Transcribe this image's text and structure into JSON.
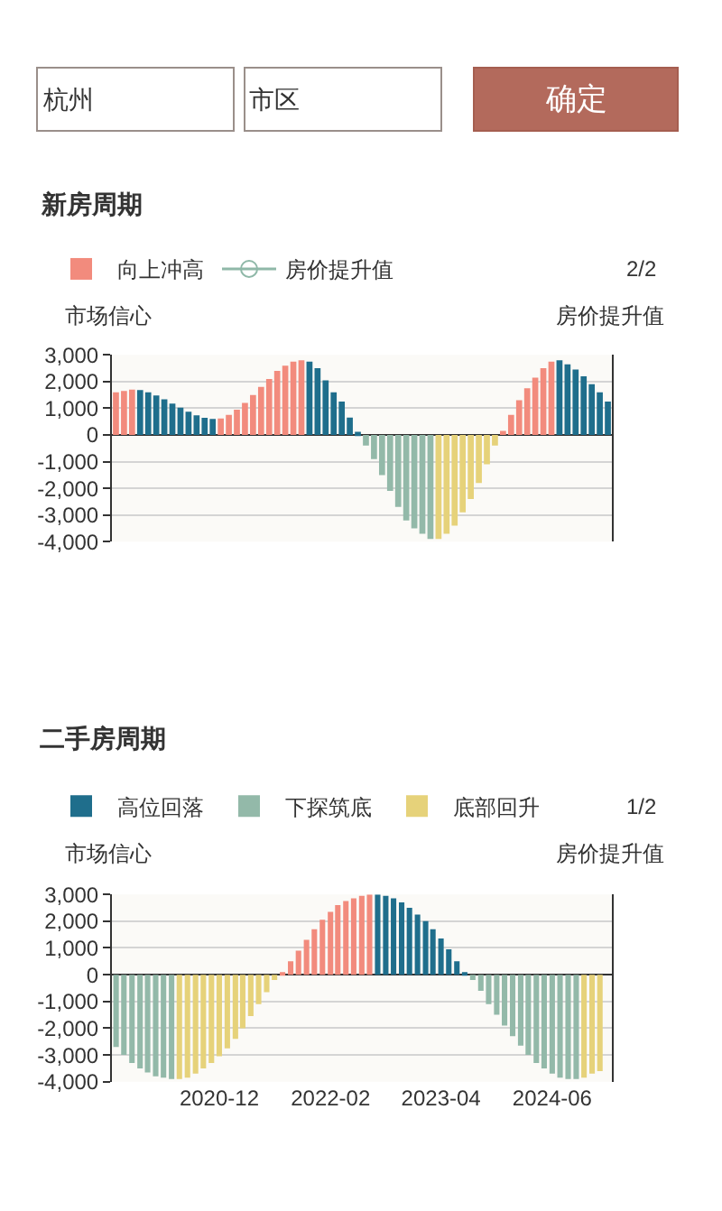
{
  "chart_data": [
    {
      "type": "bar",
      "title": "新房周期",
      "ylabel": "市场信心",
      "y2label": "房价提升值",
      "annotations": [
        "杭州",
        "市区",
        "确定",
        "2/2"
      ],
      "categories": [
        null,
        null,
        null,
        null,
        null,
        null,
        null,
        null,
        null,
        null,
        null,
        null,
        null,
        null,
        null,
        null,
        null,
        null,
        null,
        null,
        null,
        null,
        null,
        null,
        null,
        null,
        null,
        null,
        null,
        null,
        null,
        null,
        null,
        null,
        null,
        null,
        null,
        null,
        null,
        null,
        null,
        null,
        null,
        null,
        null,
        null,
        null,
        null,
        null,
        null,
        null,
        null,
        null,
        null,
        null,
        null,
        null,
        null,
        null,
        null,
        null,
        null
      ],
      "series": [
        {
          "name": "向上冲高",
          "color": "#f28b7d",
          "values": [
            1600,
            1650,
            1700,
            null,
            null,
            null,
            null,
            null,
            null,
            null,
            null,
            null,
            null,
            620,
            750,
            950,
            1200,
            1500,
            1800,
            2100,
            2400,
            2600,
            2750,
            2800,
            null,
            null,
            null,
            null,
            null,
            null,
            null,
            null,
            null,
            null,
            null,
            null,
            null,
            null,
            null,
            null,
            null,
            null,
            null,
            null,
            null,
            null,
            null,
            null,
            150,
            750,
            1300,
            1750,
            2150,
            2500,
            2750,
            null,
            null,
            null,
            null,
            null,
            null,
            null
          ]
        },
        {
          "color": "#1f6e8c",
          "values": [
            null,
            null,
            null,
            1680,
            1600,
            1480,
            1340,
            1180,
            1020,
            870,
            740,
            640,
            600,
            null,
            null,
            null,
            null,
            null,
            null,
            null,
            null,
            null,
            null,
            null,
            2750,
            2500,
            2050,
            1600,
            1250,
            650,
            120,
            null,
            null,
            null,
            null,
            null,
            null,
            null,
            null,
            null,
            null,
            null,
            null,
            null,
            null,
            null,
            null,
            null,
            null,
            null,
            null,
            null,
            null,
            null,
            null,
            2800,
            2650,
            2450,
            2200,
            1900,
            1600,
            1250
          ]
        },
        {
          "color": "#93b9a9",
          "values": [
            null,
            null,
            null,
            null,
            null,
            null,
            null,
            null,
            null,
            null,
            null,
            null,
            null,
            null,
            null,
            null,
            null,
            null,
            null,
            null,
            null,
            null,
            null,
            null,
            null,
            null,
            null,
            null,
            null,
            null,
            null,
            -400,
            -900,
            -1500,
            -2100,
            -2700,
            -3200,
            -3500,
            -3700,
            -3900,
            null,
            null,
            null,
            null,
            null,
            null,
            null,
            null,
            null,
            null,
            null,
            null,
            null,
            null,
            null,
            null,
            null,
            null,
            null,
            null,
            null,
            null
          ]
        },
        {
          "color": "#e6d27a",
          "values": [
            null,
            null,
            null,
            null,
            null,
            null,
            null,
            null,
            null,
            null,
            null,
            null,
            null,
            null,
            null,
            null,
            null,
            null,
            null,
            null,
            null,
            null,
            null,
            null,
            null,
            null,
            null,
            null,
            null,
            null,
            null,
            null,
            null,
            null,
            null,
            null,
            null,
            null,
            null,
            null,
            -3900,
            -3700,
            -3400,
            -2900,
            -2400,
            -1800,
            -1100,
            -400,
            null,
            null,
            null,
            null,
            null,
            null,
            null,
            null,
            null,
            null,
            null,
            null,
            null,
            null
          ]
        },
        {
          "name": "房价提升值",
          "type": "line",
          "marker": "circle",
          "color": "#8fb8a8",
          "values": [
            null,
            null,
            null,
            null,
            null,
            null,
            null,
            null,
            null,
            null,
            null,
            null,
            null,
            null,
            null,
            null,
            null,
            null,
            null,
            null,
            null,
            null,
            null,
            null,
            null,
            null,
            null,
            null,
            null,
            null,
            null,
            null,
            null,
            null,
            null,
            null,
            null,
            null,
            null,
            null,
            null,
            null,
            null,
            null,
            null,
            null,
            null,
            null,
            null,
            null,
            null,
            null,
            null,
            null,
            null,
            null,
            null,
            null,
            null,
            null,
            null,
            null
          ]
        }
      ],
      "ylim": [
        -4000,
        3000
      ],
      "yticks": [
        {
          "value": 3000,
          "label": "3,000"
        },
        {
          "value": 2000,
          "label": "2,000"
        },
        {
          "value": 1000,
          "label": "1,000"
        },
        0,
        {
          "value": -1000,
          "label": "-1,000"
        },
        {
          "value": -2000,
          "label": "-2,000"
        },
        {
          "value": -3000,
          "label": "-3,000"
        },
        {
          "value": -4000,
          "label": "-4,000"
        }
      ],
      "grid": "y",
      "legend": "top",
      "tick_labels": "y"
    },
    {
      "type": "bar",
      "title": "二手房周期",
      "ylabel": "市场信心",
      "y2label": "房价提升值",
      "annotations": [
        "1/2"
      ],
      "x": [
        "2019-11",
        "2019-12",
        "2020-01",
        "2020-02",
        "2020-03",
        "2020-04",
        "2020-05",
        "2020-06",
        "2020-07",
        "2020-08",
        "2020-09",
        "2020-10",
        "2020-11",
        "2020-12",
        "2021-01",
        "2021-02",
        "2021-03",
        "2021-04",
        "2021-05",
        "2021-06",
        "2021-07",
        "2021-08",
        "2021-09",
        "2021-10",
        "2021-11",
        "2021-12",
        "2022-01",
        "2022-02",
        "2022-03",
        "2022-04",
        "2022-05",
        "2022-06",
        "2022-07",
        "2022-08",
        "2022-09",
        "2022-10",
        "2022-11",
        "2022-12",
        "2023-01",
        "2023-02",
        "2023-03",
        "2023-04",
        "2023-05",
        "2023-06",
        "2023-07",
        "2023-08",
        "2023-09",
        "2023-10",
        "2023-11",
        "2023-12",
        "2024-01",
        "2024-02",
        "2024-03",
        "2024-04",
        "2024-05",
        "2024-06",
        "2024-07",
        "2024-08",
        "2024-09",
        "2024-10",
        "2024-11",
        "2024-12"
      ],
      "series": [
        {
          "name": "高位回落",
          "color": "#1f6e8c",
          "values": [
            null,
            null,
            null,
            null,
            null,
            null,
            null,
            null,
            null,
            null,
            null,
            null,
            null,
            null,
            null,
            null,
            null,
            null,
            null,
            null,
            null,
            null,
            null,
            null,
            null,
            null,
            null,
            null,
            null,
            null,
            null,
            null,
            null,
            3000,
            2950,
            2850,
            2700,
            2500,
            2250,
            2000,
            1700,
            1350,
            950,
            500,
            100,
            null,
            null,
            null,
            null,
            null,
            null,
            null,
            null,
            null,
            null,
            null,
            null,
            null,
            null,
            null,
            null,
            null
          ]
        },
        {
          "name": "下探筑底",
          "color": "#93b9a9",
          "values": [
            -2700,
            -3000,
            -3300,
            -3500,
            -3650,
            -3800,
            -3850,
            -3900,
            null,
            null,
            null,
            null,
            null,
            null,
            null,
            null,
            null,
            null,
            null,
            null,
            null,
            null,
            null,
            null,
            null,
            null,
            null,
            null,
            null,
            null,
            null,
            null,
            null,
            null,
            null,
            null,
            null,
            null,
            null,
            null,
            null,
            null,
            null,
            null,
            null,
            -200,
            -600,
            -1100,
            -1500,
            -1900,
            -2300,
            -2650,
            -3000,
            -3300,
            -3500,
            -3700,
            -3850,
            -3900,
            -3900,
            null,
            null,
            null
          ]
        },
        {
          "name": "底部回升",
          "color": "#e6d27a",
          "values": [
            null,
            null,
            null,
            null,
            null,
            null,
            null,
            null,
            -3900,
            -3850,
            -3700,
            -3500,
            -3300,
            -3050,
            -2750,
            -2400,
            -2000,
            -1550,
            -1100,
            -650,
            -200,
            null,
            null,
            null,
            null,
            null,
            null,
            null,
            null,
            null,
            null,
            null,
            null,
            null,
            null,
            null,
            null,
            null,
            null,
            null,
            null,
            null,
            null,
            null,
            null,
            null,
            null,
            null,
            null,
            null,
            null,
            null,
            null,
            null,
            null,
            null,
            null,
            null,
            null,
            -3850,
            -3700,
            -3600
          ]
        },
        {
          "color": "#f28b7d",
          "values": [
            null,
            null,
            null,
            null,
            null,
            null,
            null,
            null,
            null,
            null,
            null,
            null,
            null,
            null,
            null,
            null,
            null,
            null,
            null,
            null,
            null,
            100,
            500,
            900,
            1300,
            1700,
            2050,
            2350,
            2600,
            2750,
            2850,
            2950,
            3000,
            null,
            null,
            null,
            null,
            null,
            null,
            null,
            null,
            null,
            null,
            null,
            null,
            null,
            null,
            null,
            null,
            null,
            null,
            null,
            null,
            null,
            null,
            null,
            null,
            null,
            null,
            null,
            null,
            null
          ]
        }
      ],
      "xlim": [
        "2019-10-16",
        "2025-01-16"
      ],
      "xticks": [
        "2020-12",
        "2022-02",
        "2023-04",
        "2024-06"
      ],
      "ylim": [
        -4000,
        3000
      ],
      "yticks": [
        {
          "value": 3000,
          "label": "3,000"
        },
        {
          "value": 2000,
          "label": "2,000"
        },
        {
          "value": 1000,
          "label": "1,000"
        },
        0,
        {
          "value": -1000,
          "label": "-1,000"
        },
        {
          "value": -2000,
          "label": "-2,000"
        },
        {
          "value": -3000,
          "label": "-3,000"
        },
        {
          "value": -4000,
          "label": "-4,000"
        }
      ],
      "grid": "y",
      "legend": "top"
    }
  ]
}
